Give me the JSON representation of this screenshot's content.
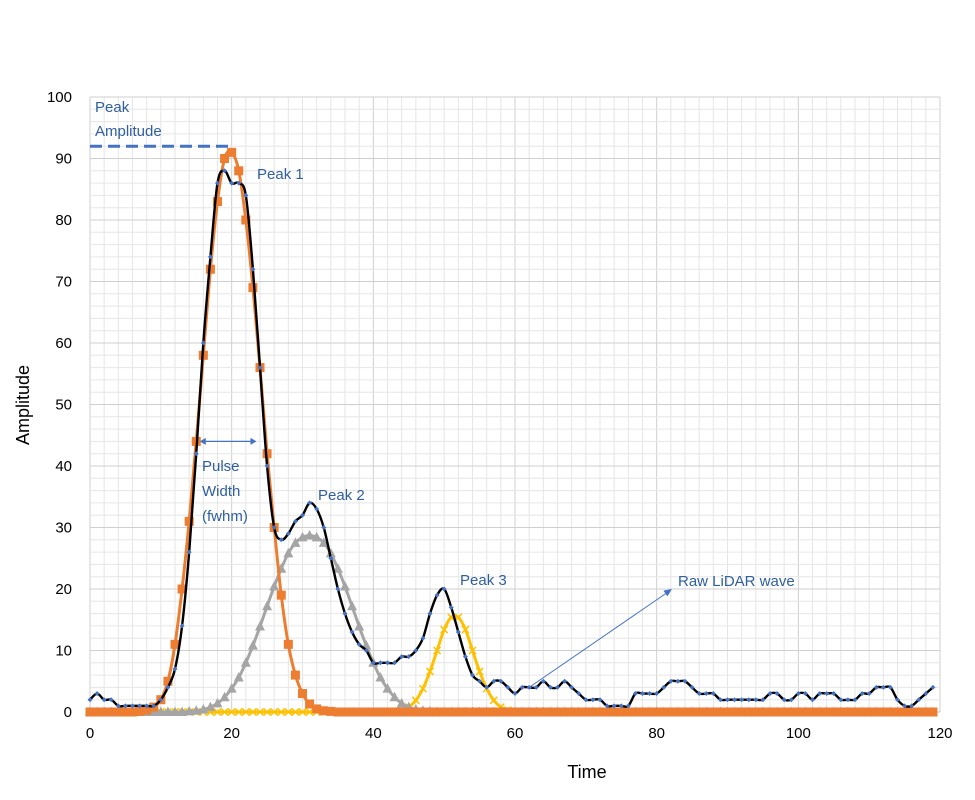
{
  "chart_data": {
    "type": "line",
    "title": "",
    "xlabel": "Time",
    "ylabel": "Amplitude",
    "xlim": [
      0,
      120
    ],
    "ylim": [
      0,
      100
    ],
    "x_ticks": [
      0,
      20,
      40,
      60,
      80,
      100,
      120
    ],
    "y_ticks": [
      0,
      10,
      20,
      30,
      40,
      50,
      60,
      70,
      80,
      90,
      100
    ],
    "grid": true,
    "legend": "none",
    "series": [
      {
        "key": "raw",
        "color": "#000000",
        "marker": "diamond",
        "x": [
          0,
          1,
          2,
          3,
          4,
          5,
          6,
          7,
          8,
          9,
          10,
          11,
          12,
          13,
          14,
          15,
          16,
          17,
          18,
          19,
          20,
          21,
          22,
          23,
          24,
          25,
          26,
          27,
          28,
          29,
          30,
          31,
          32,
          33,
          34,
          35,
          36,
          37,
          38,
          39,
          40,
          41,
          42,
          43,
          44,
          45,
          46,
          47,
          48,
          49,
          50,
          51,
          52,
          53,
          54,
          55,
          56,
          57,
          58,
          59,
          60,
          61,
          62,
          63,
          64,
          65,
          66,
          67,
          68,
          69,
          70,
          71,
          72,
          73,
          74,
          75,
          76,
          77,
          78,
          79,
          80,
          81,
          82,
          83,
          84,
          85,
          86,
          87,
          88,
          89,
          90,
          91,
          92,
          93,
          94,
          95,
          96,
          97,
          98,
          99,
          100,
          101,
          102,
          103,
          104,
          105,
          106,
          107,
          108,
          109,
          110,
          111,
          112,
          113,
          114,
          115,
          116,
          117,
          118,
          119
        ],
        "y": [
          2,
          3,
          2,
          2,
          1,
          1,
          1,
          1,
          1,
          1,
          2,
          4,
          7,
          14,
          26,
          42,
          60,
          74,
          86,
          88,
          86,
          86,
          84,
          72,
          56,
          40,
          30,
          28,
          29,
          31,
          32,
          34,
          33,
          30,
          25,
          20,
          16,
          13,
          11,
          10,
          8,
          8,
          8,
          8,
          9,
          9,
          10,
          12,
          16,
          19,
          20,
          17,
          13,
          9,
          6,
          5,
          4,
          5,
          5,
          4,
          3,
          4,
          4,
          4,
          5,
          4,
          4,
          5,
          4,
          3,
          2,
          2,
          2,
          1,
          1,
          1,
          1,
          3,
          3,
          3,
          3,
          4,
          5,
          5,
          5,
          4,
          3,
          3,
          3,
          2,
          2,
          2,
          2,
          2,
          2,
          2,
          3,
          3,
          2,
          2,
          3,
          3,
          2,
          3,
          3,
          3,
          2,
          2,
          2,
          3,
          3,
          4,
          4,
          4,
          2,
          1,
          1,
          2,
          3,
          4
        ]
      },
      {
        "key": "peak1",
        "color": "#ed7d31",
        "marker": "square",
        "x": [
          0,
          1,
          2,
          3,
          4,
          5,
          6,
          7,
          8,
          9,
          10,
          11,
          12,
          13,
          14,
          15,
          16,
          17,
          18,
          19,
          20,
          21,
          22,
          23,
          24,
          25,
          26,
          27,
          28,
          29,
          30,
          31,
          32,
          33,
          34,
          35,
          36,
          37,
          38,
          39,
          40,
          41,
          42,
          43,
          44,
          45,
          46,
          47,
          48,
          49,
          50,
          51,
          52,
          53,
          54,
          55,
          56,
          57,
          58,
          59,
          60,
          61,
          62,
          63,
          64,
          65,
          66,
          67,
          68,
          69,
          70,
          71,
          72,
          73,
          74,
          75,
          76,
          77,
          78,
          79,
          80,
          81,
          82,
          83,
          84,
          85,
          86,
          87,
          88,
          89,
          90,
          91,
          92,
          93,
          94,
          95,
          96,
          97,
          98,
          99,
          100,
          101,
          102,
          103,
          104,
          105,
          106,
          107,
          108,
          109,
          110,
          111,
          112,
          113,
          114,
          115,
          116,
          117,
          118,
          119
        ],
        "y": [
          0,
          0,
          0,
          0,
          0,
          0,
          0,
          0.1,
          0.3,
          0.8,
          2,
          5,
          11,
          20,
          31,
          44,
          58,
          72,
          83,
          90,
          91,
          88,
          80,
          69,
          56,
          42,
          30,
          19,
          11,
          6,
          3,
          1.3,
          0.5,
          0.2,
          0.1,
          0,
          0,
          0,
          0,
          0,
          0,
          0,
          0,
          0,
          0,
          0,
          0,
          0,
          0,
          0,
          0,
          0,
          0,
          0,
          0,
          0,
          0,
          0,
          0,
          0,
          0,
          0,
          0,
          0,
          0,
          0,
          0,
          0,
          0,
          0,
          0,
          0,
          0,
          0,
          0,
          0,
          0,
          0,
          0,
          0,
          0,
          0,
          0,
          0,
          0,
          0,
          0,
          0,
          0,
          0,
          0,
          0,
          0,
          0,
          0,
          0,
          0,
          0,
          0,
          0,
          0,
          0,
          0,
          0,
          0,
          0,
          0,
          0,
          0,
          0,
          0,
          0,
          0,
          0,
          0,
          0,
          0,
          0,
          0,
          0
        ]
      },
      {
        "key": "peak2",
        "color": "#a5a5a5",
        "marker": "triangle",
        "x": [
          0,
          1,
          2,
          3,
          4,
          5,
          6,
          7,
          8,
          9,
          10,
          11,
          12,
          13,
          14,
          15,
          16,
          17,
          18,
          19,
          20,
          21,
          22,
          23,
          24,
          25,
          26,
          27,
          28,
          29,
          30,
          31,
          32,
          33,
          34,
          35,
          36,
          37,
          38,
          39,
          40,
          41,
          42,
          43,
          44,
          45,
          46,
          47,
          48,
          49,
          50,
          51,
          52,
          53,
          54,
          55,
          56,
          57,
          58,
          59,
          60,
          61,
          62,
          63,
          64,
          65,
          66,
          67,
          68,
          69,
          70,
          71,
          72,
          73,
          74,
          75,
          76,
          77,
          78,
          79,
          80,
          81,
          82,
          83,
          84,
          85,
          86,
          87,
          88,
          89,
          90,
          91,
          92,
          93,
          94,
          95,
          96,
          97,
          98,
          99,
          100,
          101,
          102,
          103,
          104,
          105,
          106,
          107,
          108,
          109,
          110,
          111,
          112,
          113,
          114,
          115,
          116,
          117,
          118,
          119
        ],
        "y": [
          0,
          0,
          0,
          0,
          0,
          0,
          0,
          0,
          0,
          0,
          0,
          0,
          0,
          0,
          0.1,
          0.2,
          0.4,
          0.8,
          1.4,
          2.4,
          3.8,
          5.6,
          8,
          10.8,
          13.9,
          17.2,
          20.4,
          23.3,
          25.8,
          27.5,
          28.4,
          28.7,
          28.4,
          27.5,
          25.8,
          23.3,
          20.4,
          17.2,
          13.9,
          10.8,
          8,
          5.6,
          3.8,
          2.4,
          1.4,
          0.8,
          0.4,
          0.2,
          0.1,
          0,
          0,
          0,
          0,
          0,
          0,
          0,
          0,
          0,
          0,
          0,
          0,
          0,
          0,
          0,
          0,
          0,
          0,
          0,
          0,
          0,
          0,
          0,
          0,
          0,
          0,
          0,
          0,
          0,
          0,
          0,
          0,
          0,
          0,
          0,
          0,
          0,
          0,
          0,
          0,
          0,
          0,
          0,
          0,
          0,
          0,
          0,
          0,
          0,
          0,
          0,
          0,
          0,
          0,
          0,
          0,
          0,
          0,
          0,
          0,
          0,
          0,
          0,
          0,
          0,
          0,
          0,
          0,
          0,
          0,
          0
        ]
      },
      {
        "key": "peak3",
        "color": "#ffc000",
        "marker": "x",
        "x": [
          0,
          1,
          2,
          3,
          4,
          5,
          6,
          7,
          8,
          9,
          10,
          11,
          12,
          13,
          14,
          15,
          16,
          17,
          18,
          19,
          20,
          21,
          22,
          23,
          24,
          25,
          26,
          27,
          28,
          29,
          30,
          31,
          32,
          33,
          34,
          35,
          36,
          37,
          38,
          39,
          40,
          41,
          42,
          43,
          44,
          45,
          46,
          47,
          48,
          49,
          50,
          51,
          52,
          53,
          54,
          55,
          56,
          57,
          58,
          59,
          60,
          61,
          62,
          63,
          64,
          65,
          66,
          67,
          68,
          69,
          70,
          71,
          72,
          73,
          74,
          75,
          76,
          77,
          78,
          79,
          80,
          81,
          82,
          83,
          84,
          85,
          86,
          87,
          88,
          89,
          90,
          91,
          92,
          93,
          94,
          95,
          96,
          97,
          98,
          99,
          100,
          101,
          102,
          103,
          104,
          105,
          106,
          107,
          108,
          109,
          110,
          111,
          112,
          113,
          114,
          115,
          116,
          117,
          118,
          119
        ],
        "y": [
          0,
          0,
          0,
          0,
          0,
          0,
          0,
          0,
          0,
          0,
          0,
          0,
          0,
          0,
          0,
          0,
          0,
          0,
          0,
          0,
          0,
          0,
          0,
          0,
          0,
          0,
          0,
          0,
          0,
          0,
          0,
          0,
          0,
          0,
          0,
          0,
          0,
          0,
          0,
          0,
          0,
          0,
          0,
          0.1,
          0.3,
          0.8,
          1.9,
          3.8,
          6.6,
          10,
          13.4,
          15.4,
          15.4,
          13.4,
          10,
          6.6,
          3.8,
          1.9,
          0.8,
          0.3,
          0.1,
          0,
          0,
          0,
          0,
          0,
          0,
          0,
          0,
          0,
          0,
          0,
          0,
          0,
          0,
          0,
          0,
          0,
          0,
          0,
          0,
          0,
          0,
          0,
          0,
          0,
          0,
          0,
          0,
          0,
          0,
          0,
          0,
          0,
          0,
          0,
          0,
          0,
          0,
          0,
          0,
          0,
          0,
          0,
          0,
          0,
          0,
          0,
          0,
          0,
          0,
          0,
          0,
          0,
          0,
          0,
          0,
          0,
          0,
          0
        ]
      }
    ],
    "annotations": {
      "peak_amplitude": [
        "Peak",
        "Amplitude"
      ],
      "peak_amplitude_value": 92,
      "peak1": "Peak 1",
      "peak2": "Peak 2",
      "peak3": "Peak 3",
      "pulse_width": [
        "Pulse",
        "Width",
        "(fwhm)"
      ],
      "pulse_width_range": [
        15.5,
        23.5
      ],
      "pulse_width_level": 44,
      "raw_wave": "Raw LiDAR wave",
      "raw_wave_target": [
        62,
        4
      ]
    }
  }
}
